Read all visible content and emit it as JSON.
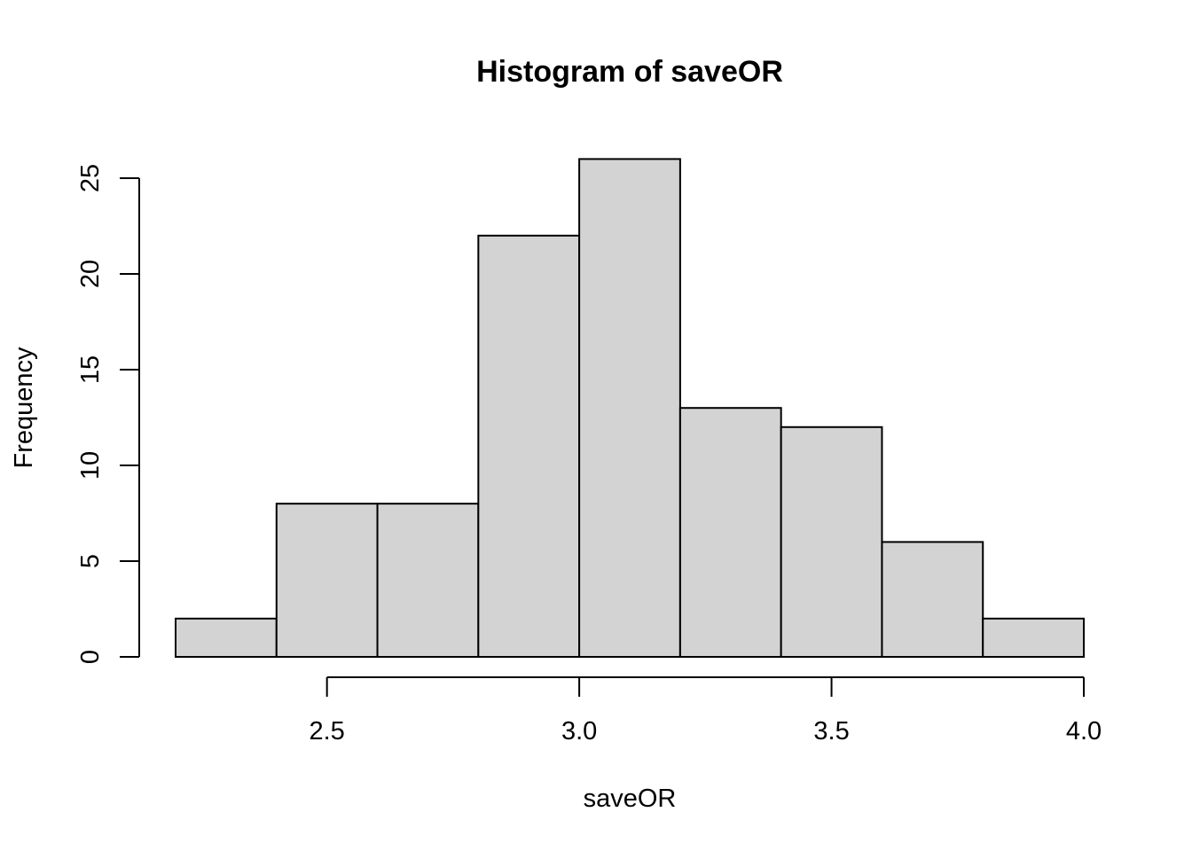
{
  "chart_data": {
    "type": "bar",
    "title": "Histogram of saveOR",
    "xlabel": "saveOR",
    "ylabel": "Frequency",
    "bins": [
      {
        "start": 2.2,
        "end": 2.4,
        "count": 2
      },
      {
        "start": 2.4,
        "end": 2.6,
        "count": 8
      },
      {
        "start": 2.6,
        "end": 2.8,
        "count": 8
      },
      {
        "start": 2.8,
        "end": 3.0,
        "count": 22
      },
      {
        "start": 3.0,
        "end": 3.2,
        "count": 26
      },
      {
        "start": 3.2,
        "end": 3.4,
        "count": 13
      },
      {
        "start": 3.4,
        "end": 3.6,
        "count": 12
      },
      {
        "start": 3.6,
        "end": 3.8,
        "count": 6
      },
      {
        "start": 3.8,
        "end": 4.0,
        "count": 2
      }
    ],
    "x_ticks": [
      2.5,
      3.0,
      3.5,
      4.0
    ],
    "x_tick_labels": [
      "2.5",
      "3.0",
      "3.5",
      "4.0"
    ],
    "y_ticks": [
      0,
      5,
      10,
      15,
      20,
      25
    ],
    "y_tick_labels": [
      "0",
      "5",
      "10",
      "15",
      "20",
      "25"
    ],
    "xlim": [
      2.2,
      4.0
    ],
    "ylim": [
      0,
      26
    ],
    "grid": false,
    "legend": "none",
    "bar_fill": "#d3d3d3",
    "bar_stroke": "#000000"
  }
}
